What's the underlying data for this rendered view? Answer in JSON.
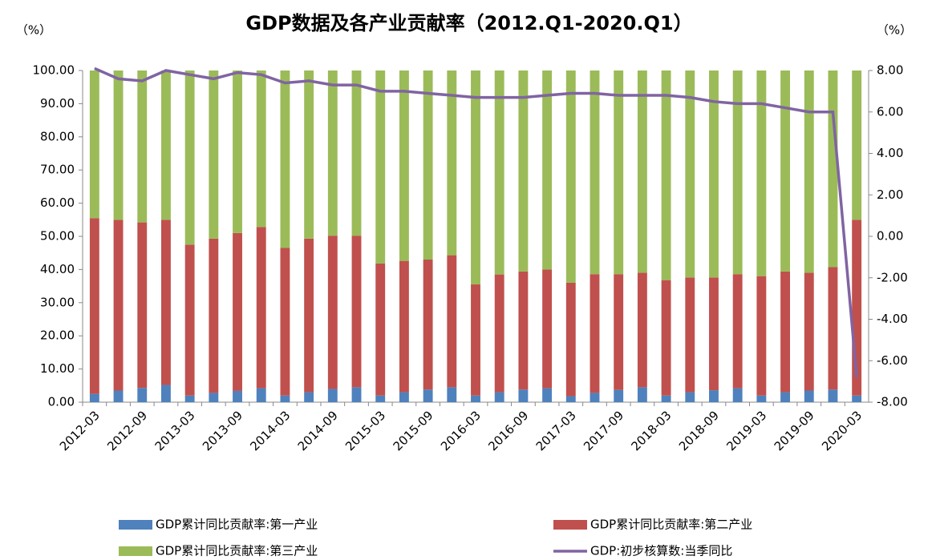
{
  "chart_data": {
    "type": "bar-line",
    "title": "GDP数据及各产业贡献率（2012.Q1-2020.Q1）",
    "y_label": "（%）",
    "y2_label": "（%）",
    "categories": [
      "2012-03",
      null,
      "2012-09",
      null,
      "2013-03",
      null,
      "2013-09",
      null,
      "2014-03",
      null,
      "2014-09",
      null,
      "2015-03",
      null,
      "2015-09",
      null,
      "2016-03",
      null,
      "2016-09",
      null,
      "2017-03",
      null,
      "2017-09",
      null,
      "2018-03",
      null,
      "2018-09",
      null,
      "2019-03",
      null,
      "2019-09",
      null,
      "2020-03"
    ],
    "series": [
      {
        "name": "GDP累计同比贡献率:第一产业",
        "color": "#4f81bd",
        "kind": "bar",
        "values": [
          2.5,
          3.5,
          4.3,
          5.2,
          2.0,
          2.8,
          3.4,
          4.2,
          2.0,
          3.0,
          4.0,
          4.5,
          2.0,
          3.0,
          3.8,
          4.5,
          2.0,
          3.0,
          3.8,
          4.2,
          1.8,
          2.8,
          3.7,
          4.5,
          2.0,
          3.0,
          3.6,
          4.2,
          2.0,
          3.0,
          3.5,
          3.8,
          2.0
        ]
      },
      {
        "name": "GDP累计同比贡献率:第二产业",
        "color": "#c0504d",
        "kind": "bar",
        "values": [
          53.0,
          51.5,
          49.9,
          49.8,
          45.5,
          46.5,
          47.6,
          48.6,
          44.5,
          46.3,
          46.2,
          45.7,
          39.8,
          39.6,
          39.2,
          39.8,
          33.5,
          35.5,
          35.6,
          35.8,
          34.2,
          35.8,
          34.9,
          34.5,
          34.8,
          34.6,
          34.0,
          34.4,
          36.0,
          36.4,
          35.5,
          36.9,
          53.0
        ]
      },
      {
        "name": "GDP累计同比贡献率:第三产业",
        "color": "#9bbb59",
        "kind": "bar",
        "values": [
          44.5,
          45,
          45.8,
          45,
          52.5,
          50.7,
          49,
          47.2,
          53.5,
          50.7,
          49.8,
          49.8,
          58.2,
          57.4,
          57,
          55.7,
          64.5,
          61.5,
          60.6,
          60,
          64,
          61.4,
          61.4,
          61,
          63.2,
          62.4,
          62.4,
          61.4,
          62,
          60.6,
          61,
          59.3,
          45
        ]
      },
      {
        "name": "GDP:初步核算数:当季同比",
        "color": "#8064a2",
        "kind": "line",
        "axis": "y2",
        "values": [
          8.1,
          7.6,
          7.5,
          8.0,
          7.8,
          7.6,
          7.9,
          7.8,
          7.4,
          7.5,
          7.3,
          7.3,
          7.0,
          7.0,
          6.9,
          6.8,
          6.7,
          6.7,
          6.7,
          6.8,
          6.9,
          6.9,
          6.8,
          6.8,
          6.8,
          6.7,
          6.5,
          6.4,
          6.4,
          6.2,
          6.0,
          6.0,
          -6.8
        ]
      }
    ],
    "ylim": [
      0,
      100
    ],
    "yticks": [
      {
        "value": 0,
        "label": "0.00"
      },
      {
        "value": 10,
        "label": "10.00"
      },
      {
        "value": 20,
        "label": "20.00"
      },
      {
        "value": 30,
        "label": "30.00"
      },
      {
        "value": 40,
        "label": "40.00"
      },
      {
        "value": 50,
        "label": "50.00"
      },
      {
        "value": 60,
        "label": "60.00"
      },
      {
        "value": 70,
        "label": "70.00"
      },
      {
        "value": 80,
        "label": "80.00"
      },
      {
        "value": 90,
        "label": "90.00"
      },
      {
        "value": 100,
        "label": "100.00"
      }
    ],
    "y2lim": [
      -8,
      8
    ],
    "y2ticks": [
      {
        "value": -8,
        "label": "-8.00"
      },
      {
        "value": -6,
        "label": "-6.00"
      },
      {
        "value": -4,
        "label": "-4.00"
      },
      {
        "value": -2,
        "label": "-2.00"
      },
      {
        "value": 0,
        "label": "0.00"
      },
      {
        "value": 2,
        "label": "2.00"
      },
      {
        "value": 4,
        "label": "4.00"
      },
      {
        "value": 6,
        "label": "6.00"
      },
      {
        "value": 8,
        "label": "8.00"
      }
    ],
    "grid": false,
    "legend": "bottom"
  }
}
